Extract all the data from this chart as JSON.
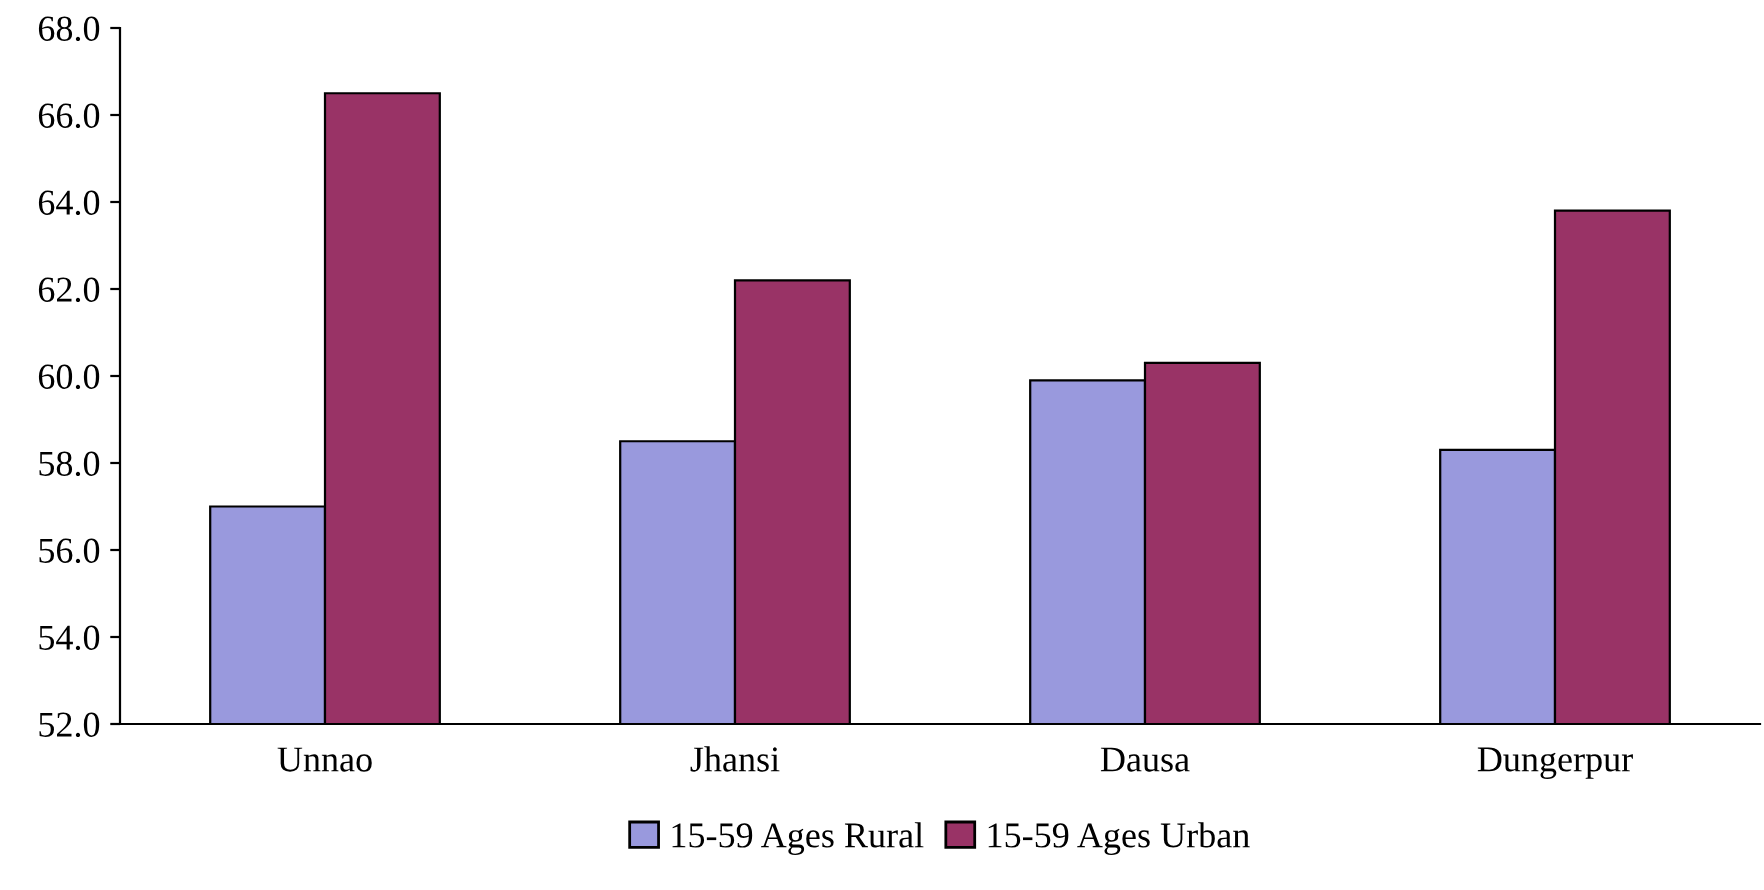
{
  "chart_data": {
    "type": "bar",
    "categories": [
      "Unnao",
      "Jhansi",
      "Dausa",
      "Dungerpur"
    ],
    "series": [
      {
        "name": "15-59 Ages Rural",
        "color": "#9999dd",
        "values": [
          57.0,
          58.5,
          59.9,
          58.3
        ]
      },
      {
        "name": "15-59 Ages Urban",
        "color": "#993366",
        "values": [
          66.5,
          62.2,
          60.3,
          63.8
        ]
      }
    ],
    "ylim": [
      52,
      68
    ],
    "yticks": [
      {
        "value": 52,
        "label": "52.0"
      },
      {
        "value": 54,
        "label": "54.0"
      },
      {
        "value": 56,
        "label": "56.0"
      },
      {
        "value": 58,
        "label": "58.0"
      },
      {
        "value": 60,
        "label": "60.0"
      },
      {
        "value": 62,
        "label": "62.0"
      },
      {
        "value": 64,
        "label": "64.0"
      },
      {
        "value": 66,
        "label": "66.0"
      },
      {
        "value": 68,
        "label": "68.0"
      }
    ],
    "grid": false,
    "legend": "bottom"
  }
}
